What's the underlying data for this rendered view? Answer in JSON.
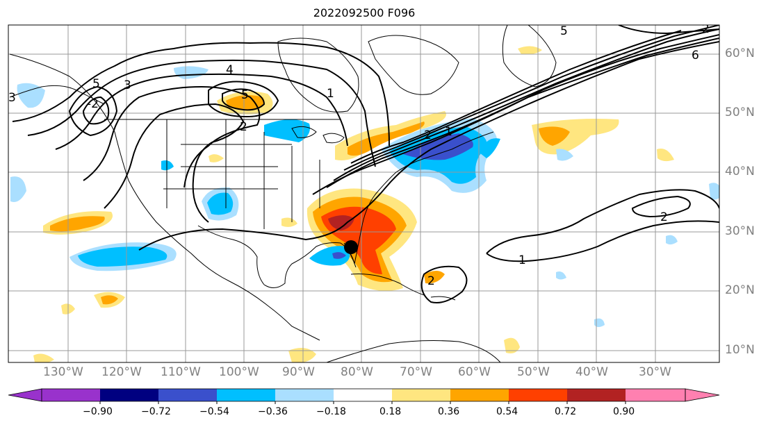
{
  "title": "2022092500 F096",
  "map": {
    "lon_labels": [
      "130°W",
      "120°W",
      "110°W",
      "100°W",
      "90°W",
      "80°W",
      "70°W",
      "60°W",
      "50°W",
      "40°W",
      "30°W"
    ],
    "lat_labels": [
      "60°N",
      "50°N",
      "40°N",
      "30°N",
      "20°N",
      "10°N"
    ],
    "contour_labels": [
      "5",
      "3",
      "4",
      "2",
      "1",
      "-2",
      "5",
      "1",
      "2",
      "6",
      "2",
      "1",
      "5",
      "2",
      "3",
      "2"
    ],
    "storm_marker": "black-dot"
  },
  "colorbar": {
    "tick_labels": [
      "−0.90",
      "−0.72",
      "−0.54",
      "−0.36",
      "−0.18",
      "0.18",
      "0.36",
      "0.54",
      "0.72",
      "0.90"
    ],
    "colors": [
      "#9932cc",
      "#000080",
      "#3a50cc",
      "#00bfff",
      "#aadfff",
      "#ffffff",
      "#ffe680",
      "#ffa500",
      "#ff4000",
      "#b22222",
      "#ff80b0"
    ]
  }
}
